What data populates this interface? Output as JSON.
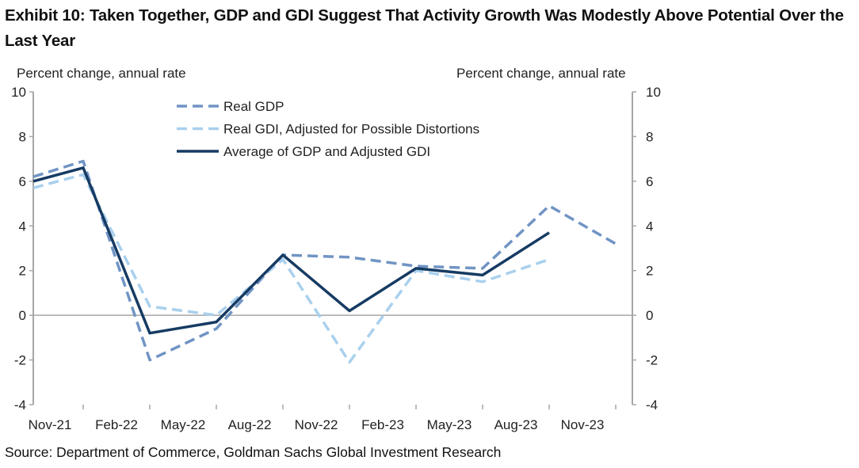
{
  "title": "Exhibit 10: Taken Together, GDP and GDI Suggest That Activity Growth Was Modestly Above Potential Over the Last Year",
  "source": "Source: Department of Commerce, Goldman Sachs Global Investment Research",
  "chart_data": {
    "type": "line",
    "ylabel_left": "Percent change, annual rate",
    "ylabel_right": "Percent change, annual rate",
    "ylim": [
      -4,
      10
    ],
    "yticks": [
      -4,
      -2,
      0,
      2,
      4,
      6,
      8,
      10
    ],
    "x_tick_labels": [
      "Nov-21",
      "Feb-22",
      "May-22",
      "Aug-22",
      "Nov-22",
      "Feb-23",
      "May-23",
      "Aug-23",
      "Nov-23"
    ],
    "x": [
      "Aug-21",
      "Nov-21",
      "Feb-22",
      "May-22",
      "Aug-22",
      "Nov-22",
      "Feb-23",
      "May-23",
      "Aug-23",
      "Nov-23"
    ],
    "legend_position": "top-center",
    "series": [
      {
        "name": "Real GDP",
        "style": "dashed",
        "color": "#7094c4",
        "values": [
          6.2,
          6.9,
          -2.0,
          -0.6,
          2.7,
          2.6,
          2.2,
          2.1,
          4.9,
          3.2
        ]
      },
      {
        "name": "Real GDI, Adjusted for Possible Distortions",
        "style": "dashed",
        "color": "#a9d0ee",
        "values": [
          5.7,
          6.3,
          0.4,
          0.0,
          2.5,
          -2.1,
          2.0,
          1.5,
          2.5,
          null
        ]
      },
      {
        "name": "Average of GDP and Adjusted GDI",
        "style": "solid",
        "color": "#163b63",
        "values": [
          6.0,
          6.6,
          -0.8,
          -0.3,
          2.7,
          0.2,
          2.1,
          1.8,
          3.7,
          null
        ]
      }
    ]
  }
}
